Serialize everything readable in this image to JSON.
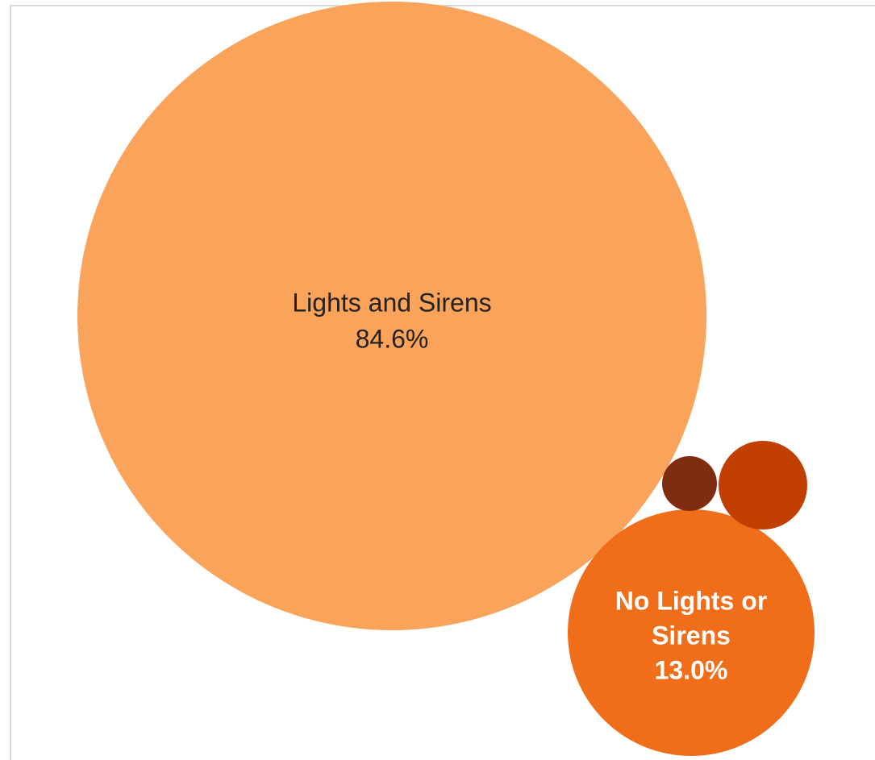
{
  "chart_data": {
    "type": "bubble",
    "title": "",
    "categories": [
      "Lights and Sirens",
      "No Lights or Sirens",
      "",
      ""
    ],
    "values": [
      84.6,
      13.0,
      null,
      null
    ],
    "labels": [
      {
        "lines": [
          "Lights and Sirens",
          "84.6%"
        ]
      },
      {
        "lines": [
          "No Lights or",
          "Sirens",
          "13.0%"
        ]
      },
      {
        "lines": []
      },
      {
        "lines": []
      }
    ],
    "colors": [
      "#FAA35B",
      "#F06D1A",
      "#C23F02",
      "#7F2D11"
    ],
    "label_colors": [
      "#222222",
      "#ffffff",
      "#ffffff",
      "#ffffff"
    ]
  }
}
